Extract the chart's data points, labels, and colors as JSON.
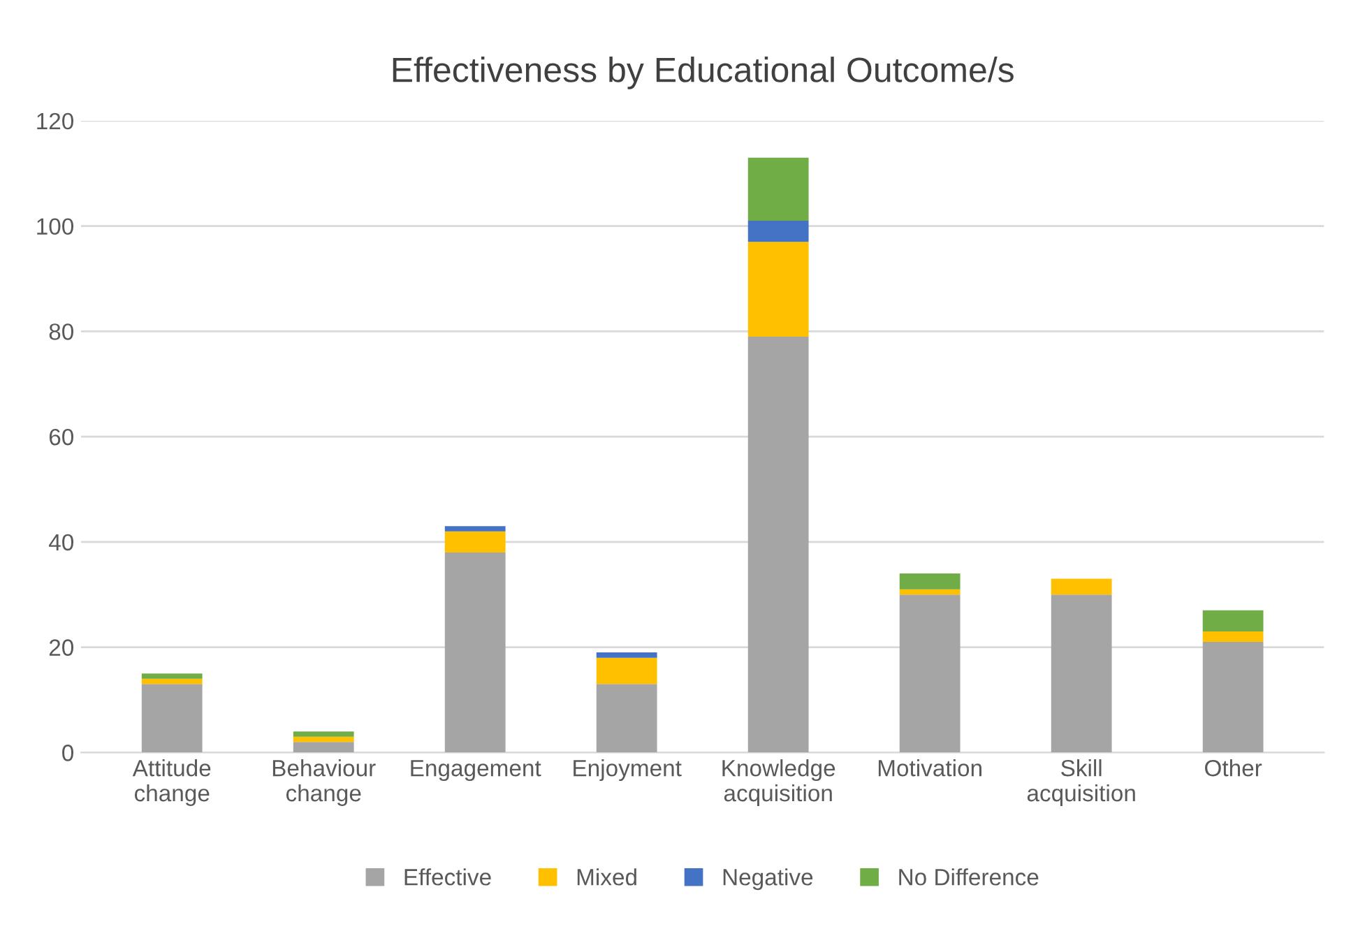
{
  "chart_data": {
    "type": "bar",
    "title": "Effectiveness by Educational Outcome/s",
    "stacked": true,
    "categories": [
      "Attitude\nchange",
      "Behaviour\nchange",
      "Engagement",
      "Enjoyment",
      "Knowledge\nacquisition",
      "Motivation",
      "Skill\nacquisition",
      "Other"
    ],
    "series": [
      {
        "name": "Effective",
        "color": "#a5a5a5",
        "values": [
          13,
          2,
          38,
          13,
          79,
          30,
          30,
          21
        ]
      },
      {
        "name": "Mixed",
        "color": "#ffc000",
        "values": [
          1,
          1,
          4,
          5,
          18,
          1,
          3,
          2
        ]
      },
      {
        "name": "Negative",
        "color": "#4472c4",
        "values": [
          0,
          0,
          1,
          1,
          4,
          0,
          0,
          0
        ]
      },
      {
        "name": "No Difference",
        "color": "#70ad47",
        "values": [
          1,
          1,
          0,
          0,
          12,
          3,
          0,
          4
        ]
      }
    ],
    "ylim": [
      0,
      120
    ],
    "yticks": [
      0,
      20,
      40,
      60,
      80,
      100,
      120
    ],
    "grid": "y",
    "legend": "bottom"
  }
}
